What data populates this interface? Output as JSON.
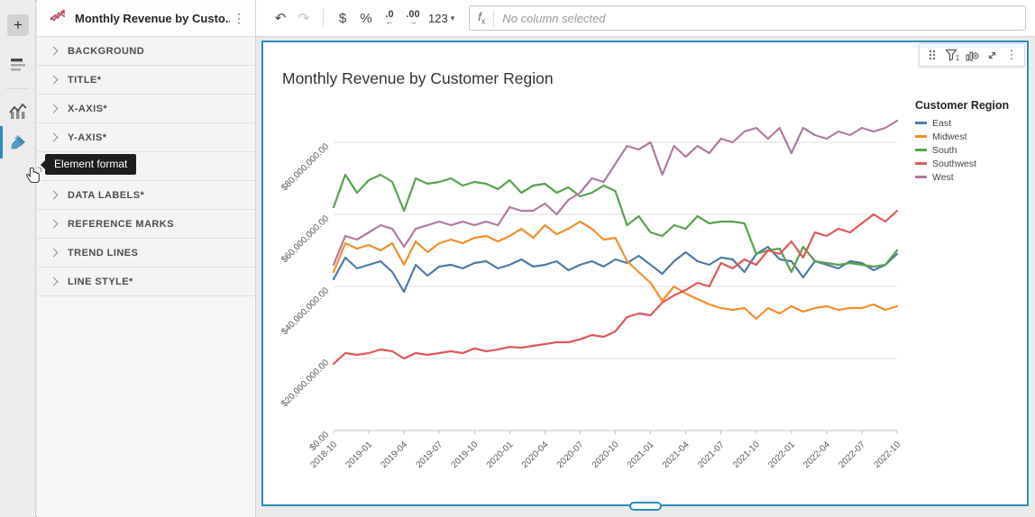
{
  "rail": {
    "add_button_label": "+",
    "icons": [
      "plus",
      "page-outline",
      "chart-element",
      "format-paintbrush"
    ],
    "active_icon": "format-paintbrush",
    "accent_color": "#2d8bb7"
  },
  "format_panel": {
    "title": "Monthly Revenue by Custo...",
    "menu_icon": "kebab-menu",
    "sections": [
      {
        "label": "BACKGROUND"
      },
      {
        "label": "TITLE*"
      },
      {
        "label": "X-AXIS*"
      },
      {
        "label": "Y-AXIS*"
      },
      {
        "label": ""
      },
      {
        "label": "DATA LABELS*"
      },
      {
        "label": "REFERENCE MARKS"
      },
      {
        "label": "TREND LINES"
      },
      {
        "label": "LINE STYLE*"
      }
    ]
  },
  "tooltip": {
    "text": "Element format"
  },
  "toolbar": {
    "undo_glyph": "↶",
    "redo_glyph": "↷",
    "currency_label": "$",
    "percent_label": "%",
    "decrease_decimal_label": ".0",
    "decrease_decimal_arrow": "←",
    "increase_decimal_label": ".00",
    "increase_decimal_arrow": "→",
    "number_format_label": "123",
    "caret_glyph": "▾",
    "fx_f": "f",
    "fx_x": "x",
    "formula_placeholder": "No column selected"
  },
  "chart_toolbar": {
    "icons": [
      "drag-handle",
      "filter",
      "create-child-element",
      "maximize",
      "kebab-menu"
    ],
    "filter_count": "1",
    "kebab_glyph": "⋮"
  },
  "chart_data": {
    "type": "line",
    "title": "Monthly Revenue by Customer Region",
    "legend_title": "Customer Region",
    "legend_position": "right",
    "grid": true,
    "unit": "USD millions",
    "ylim": [
      0,
      88
    ],
    "y_ticks": {
      "values": [
        0,
        20,
        40,
        60,
        80
      ],
      "labels": [
        "$0.00",
        "$20,000,000.00",
        "$40,000,000.00",
        "$60,000,000.00",
        "$80,000,000.00"
      ]
    },
    "x_tick_step": 3,
    "x_tick_labels": [
      "2018-10",
      "2019-01",
      "2019-04",
      "2019-07",
      "2019-10",
      "2020-01",
      "2020-04",
      "2020-07",
      "2020-10",
      "2021-01",
      "2021-04",
      "2021-07",
      "2021-10",
      "2022-01",
      "2022-04",
      "2022-07",
      "2022-10"
    ],
    "x": [
      "2018-10",
      "2018-11",
      "2018-12",
      "2019-01",
      "2019-02",
      "2019-03",
      "2019-04",
      "2019-05",
      "2019-06",
      "2019-07",
      "2019-08",
      "2019-09",
      "2019-10",
      "2019-11",
      "2019-12",
      "2020-01",
      "2020-02",
      "2020-03",
      "2020-04",
      "2020-05",
      "2020-06",
      "2020-07",
      "2020-08",
      "2020-09",
      "2020-10",
      "2020-11",
      "2020-12",
      "2021-01",
      "2021-02",
      "2021-03",
      "2021-04",
      "2021-05",
      "2021-06",
      "2021-07",
      "2021-08",
      "2021-09",
      "2021-10",
      "2021-11",
      "2021-12",
      "2022-01",
      "2022-02",
      "2022-03",
      "2022-04",
      "2022-05",
      "2022-06",
      "2022-07",
      "2022-08",
      "2022-09",
      "2022-10"
    ],
    "series": [
      {
        "name": "East",
        "color": "#4e79a7",
        "values": [
          42,
          48,
          45,
          46,
          47,
          44,
          38.5,
          46,
          43,
          45.5,
          46,
          45,
          46.5,
          47,
          45,
          46,
          47.5,
          45.5,
          46,
          47,
          44.5,
          46,
          47,
          45.5,
          47.5,
          46.5,
          48.5,
          46,
          43.5,
          47,
          49.5,
          47,
          46,
          48,
          47.5,
          44,
          49,
          51,
          47.5,
          47,
          42.5,
          47,
          46,
          45,
          47,
          46.5,
          44.5,
          46,
          49
        ]
      },
      {
        "name": "Midwest",
        "color": "#f28e2b",
        "values": [
          44,
          52,
          50.5,
          51.5,
          50,
          52,
          46,
          52.5,
          49.5,
          52,
          53,
          52,
          53.5,
          54,
          52.5,
          54,
          56,
          53.5,
          57,
          54.5,
          56,
          58,
          56,
          53,
          53.5,
          47,
          44,
          41,
          36,
          40,
          38,
          36.5,
          35,
          34,
          33.5,
          34,
          31,
          34,
          32.5,
          34.5,
          33,
          34,
          34.5,
          33.5,
          34,
          34,
          35,
          33.5,
          34.5
        ]
      },
      {
        "name": "South",
        "color": "#59a14f",
        "values": [
          62,
          71,
          66,
          69.5,
          71,
          69,
          61,
          70,
          68.5,
          69,
          70,
          68,
          69,
          68.5,
          67,
          69.5,
          66,
          68,
          68.5,
          66,
          67.5,
          65,
          66,
          68,
          66.5,
          57,
          59.5,
          55,
          54,
          57,
          56,
          59.5,
          57.5,
          58,
          58,
          57.5,
          49,
          50,
          50.5,
          44,
          51,
          47,
          46.5,
          46,
          46.5,
          46,
          45.5,
          46,
          50
        ]
      },
      {
        "name": "Southwest",
        "color": "#e15759",
        "values": [
          18.5,
          21.5,
          21,
          21.5,
          22.5,
          22,
          20,
          21.5,
          21,
          21.5,
          22,
          21.5,
          22.8,
          22,
          22.5,
          23.2,
          23,
          23.5,
          24,
          24.5,
          24.5,
          25.3,
          26.5,
          26,
          27.5,
          31.5,
          32.5,
          32,
          35.5,
          37.5,
          39,
          41,
          40,
          46.5,
          45,
          47.5,
          46,
          50,
          49,
          52.5,
          48,
          55,
          54,
          56,
          55,
          57.5,
          60,
          58,
          61
        ]
      },
      {
        "name": "West",
        "color": "#b07aa1",
        "values": [
          46,
          54,
          53,
          55,
          57,
          56,
          51,
          56,
          57,
          58,
          57,
          58,
          57,
          58,
          57,
          62,
          61,
          61,
          63,
          60,
          64,
          66,
          70,
          69,
          74,
          79,
          78,
          80,
          71,
          79,
          76,
          79,
          77,
          81,
          80,
          83,
          84,
          81,
          84,
          77,
          84,
          82,
          81,
          83,
          82,
          84,
          83,
          84,
          86
        ]
      }
    ]
  }
}
